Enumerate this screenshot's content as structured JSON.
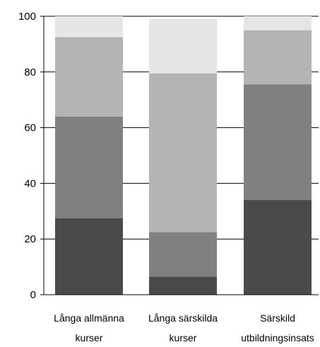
{
  "chart_data": {
    "type": "bar",
    "stacked": true,
    "categories": [
      "Långa allmänna kurser",
      "Långa särskilda kurser",
      "Särskild utbildningsinsats"
    ],
    "category_lines": [
      [
        "Långa allmänna",
        "kurser"
      ],
      [
        "Långa särskilda",
        "kurser"
      ],
      [
        "Särskild",
        "utbildningsinsats"
      ]
    ],
    "series": [
      {
        "color": "#4a4a4a",
        "values": [
          27.5,
          6.5,
          34
        ]
      },
      {
        "color": "#808080",
        "values": [
          36.5,
          16,
          41.5
        ]
      },
      {
        "color": "#b4b4b4",
        "values": [
          28.5,
          57,
          19.5
        ]
      },
      {
        "color": "#e6e6e6",
        "values": [
          7.5,
          19.5,
          5
        ]
      }
    ],
    "ylim": [
      0,
      100
    ],
    "yticks": [
      0,
      20,
      40,
      60,
      80,
      100
    ],
    "grid": true,
    "legend": "none"
  }
}
